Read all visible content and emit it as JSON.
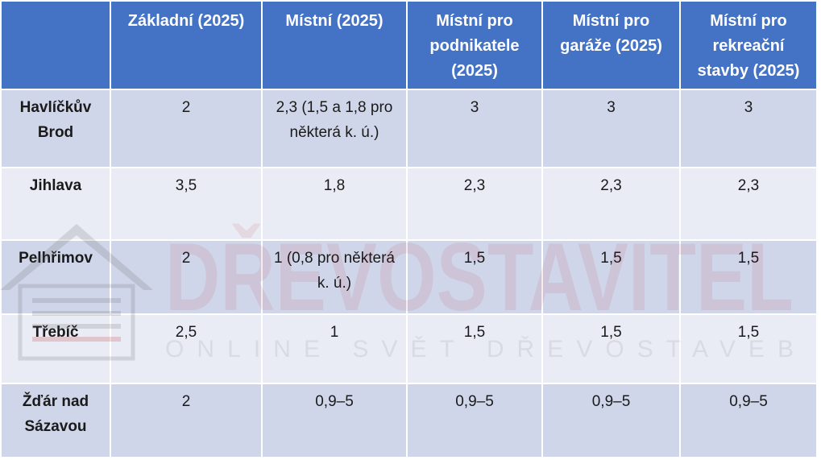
{
  "columns": [
    "",
    "Základní (2025)",
    "Místní (2025)",
    "Místní pro podnikatele (2025)",
    "Místní pro garáže (2025)",
    "Místní pro rekreační stavby (2025)"
  ],
  "rows": [
    {
      "name": "Havlíčkův Brod",
      "cells": [
        "2",
        "2,3 (1,5 a 1,8 pro některá k. ú.)",
        "3",
        "3",
        "3"
      ]
    },
    {
      "name": "Jihlava",
      "cells": [
        "3,5",
        "1,8",
        "2,3",
        "2,3",
        "2,3"
      ]
    },
    {
      "name": "Pelhřimov",
      "cells": [
        "2",
        "1 (0,8 pro některá k. ú.)",
        "1,5",
        "1,5",
        "1,5"
      ]
    },
    {
      "name": "Třebíč",
      "cells": [
        "2,5",
        "1",
        "1,5",
        "1,5",
        "1,5"
      ]
    },
    {
      "name": "Žďár nad Sázavou",
      "cells": [
        "2",
        "0,9–5",
        "0,9–5",
        "0,9–5",
        "0,9–5"
      ]
    }
  ],
  "watermark": {
    "brand": "DŘEVOSTAVITEL",
    "tagline": "ONLINE SVĚT DŘEVOSTAVEB",
    "icon": "house-icon"
  },
  "colors": {
    "header_bg": "#4472c4",
    "row_dark": "#d0d6ea",
    "row_light": "#e9ebf5"
  }
}
